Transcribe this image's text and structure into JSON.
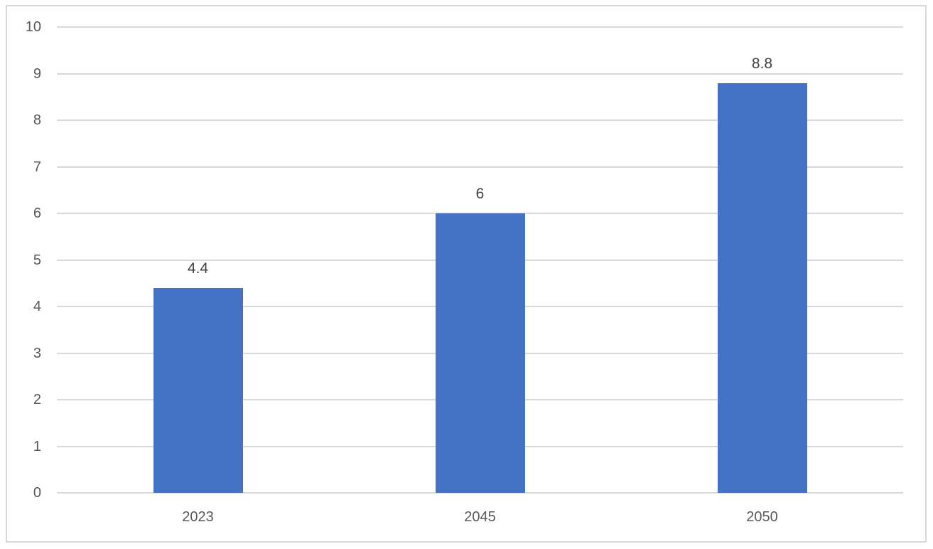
{
  "chart_data": {
    "type": "bar",
    "title": "",
    "xlabel": "",
    "ylabel": "",
    "categories": [
      "2023",
      "2045",
      "2050"
    ],
    "values": [
      4.4,
      6,
      8.8
    ],
    "data_labels": [
      "4.4",
      "6",
      "8.8"
    ],
    "ylim": [
      0,
      10
    ],
    "ytick_interval": 1,
    "yticks": [
      "0",
      "1",
      "2",
      "3",
      "4",
      "5",
      "6",
      "7",
      "8",
      "9",
      "10"
    ],
    "grid": "horizontal",
    "legend": "none",
    "colors": {
      "bar": "#4472C4",
      "gridline": "#D9D9D9",
      "chart_border": "#D9D9D9",
      "axis_tick_label": "#595959",
      "category_label": "#595959",
      "data_label": "#404040",
      "background": "#FFFFFF"
    }
  }
}
